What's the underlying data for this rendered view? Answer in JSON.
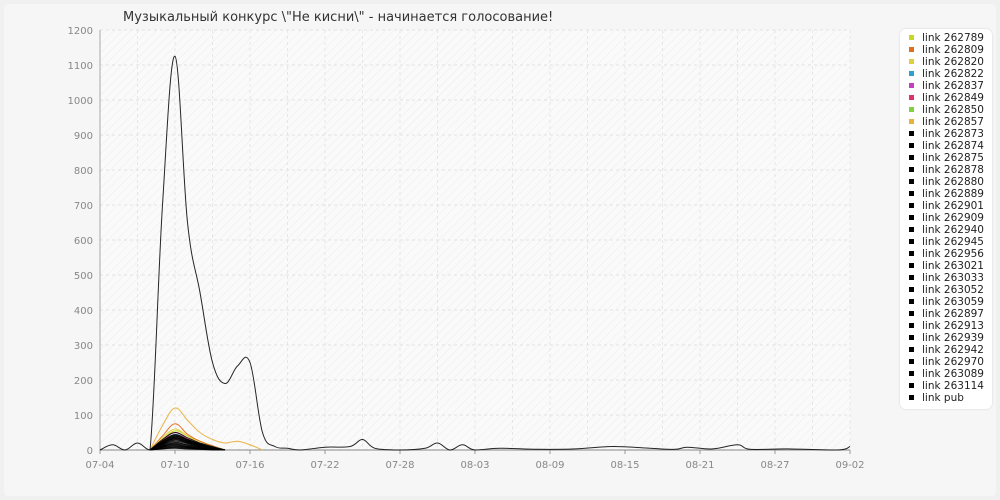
{
  "chart_data": {
    "type": "line",
    "title": "Музыкальный конкурс \\\"Не кисни\\\" - начинается голосование!",
    "xlabel": "",
    "ylabel": "",
    "ylim": [
      0,
      1200
    ],
    "y_ticks": [
      0,
      100,
      200,
      300,
      400,
      500,
      600,
      700,
      800,
      900,
      1000,
      1100,
      1200
    ],
    "x_tick_labels": [
      "07-04",
      "07-10",
      "07-16",
      "07-22",
      "07-28",
      "08-03",
      "08-09",
      "08-15",
      "08-21",
      "08-27",
      "09-02"
    ],
    "x_start": "07-04",
    "x_end": "09-02",
    "grid": true,
    "legend_position": "right",
    "series": [
      {
        "name": "link 262789",
        "color": "#c8d820",
        "x": [
          "07-08",
          "07-09",
          "07-10",
          "07-11",
          "07-12",
          "07-13",
          "07-14"
        ],
        "y": [
          0,
          30,
          55,
          40,
          25,
          10,
          0
        ]
      },
      {
        "name": "link 262809",
        "color": "#e07020",
        "x": [
          "07-08",
          "07-09",
          "07-10",
          "07-11",
          "07-12",
          "07-13",
          "07-14"
        ],
        "y": [
          0,
          40,
          75,
          45,
          25,
          12,
          0
        ]
      },
      {
        "name": "link 262820",
        "color": "#e0d040",
        "x": [
          "07-08",
          "07-09",
          "07-10",
          "07-11",
          "07-12",
          "07-13",
          "07-14"
        ],
        "y": [
          0,
          35,
          60,
          40,
          20,
          10,
          0
        ]
      },
      {
        "name": "link 262822",
        "color": "#30a0d0",
        "x": [
          "07-08",
          "07-09",
          "07-10",
          "07-11",
          "07-12",
          "07-13",
          "07-14"
        ],
        "y": [
          0,
          25,
          45,
          30,
          18,
          8,
          0
        ]
      },
      {
        "name": "link 262837",
        "color": "#c040c0",
        "x": [
          "07-08",
          "07-09",
          "07-10",
          "07-11",
          "07-12",
          "07-13",
          "07-14"
        ],
        "y": [
          0,
          20,
          40,
          30,
          15,
          5,
          0
        ]
      },
      {
        "name": "link 262849",
        "color": "#e03070",
        "x": [
          "07-08",
          "07-09",
          "07-10",
          "07-11",
          "07-12",
          "07-13",
          "07-14"
        ],
        "y": [
          0,
          28,
          50,
          32,
          16,
          6,
          0
        ]
      },
      {
        "name": "link 262850",
        "color": "#80d040",
        "x": [
          "07-08",
          "07-09",
          "07-10",
          "07-11",
          "07-12",
          "07-13",
          "07-14"
        ],
        "y": [
          0,
          22,
          42,
          28,
          14,
          5,
          0
        ]
      },
      {
        "name": "link 262857",
        "color": "#e8b040",
        "x": [
          "07-08",
          "07-09",
          "07-10",
          "07-11",
          "07-12",
          "07-13",
          "07-14",
          "07-15",
          "07-16",
          "07-17"
        ],
        "y": [
          0,
          70,
          120,
          85,
          50,
          30,
          20,
          25,
          15,
          0
        ]
      },
      {
        "name": "link 262873",
        "color": "#000000",
        "x": [
          "07-08",
          "07-09",
          "07-10",
          "07-11",
          "07-12",
          "07-13",
          "07-14"
        ],
        "y": [
          0,
          30,
          50,
          35,
          20,
          10,
          0
        ]
      },
      {
        "name": "link 262874",
        "color": "#000000",
        "x": [
          "07-08",
          "07-09",
          "07-10",
          "07-11",
          "07-12",
          "07-13",
          "07-14"
        ],
        "y": [
          0,
          25,
          42,
          30,
          18,
          8,
          0
        ]
      },
      {
        "name": "link 262875",
        "color": "#000000",
        "x": [
          "07-08",
          "07-09",
          "07-10",
          "07-11",
          "07-12",
          "07-13",
          "07-14"
        ],
        "y": [
          0,
          22,
          38,
          28,
          16,
          6,
          0
        ]
      },
      {
        "name": "link 262878",
        "color": "#000000",
        "x": [
          "07-08",
          "07-09",
          "07-10",
          "07-11",
          "07-12",
          "07-13",
          "07-14"
        ],
        "y": [
          0,
          20,
          35,
          25,
          15,
          5,
          0
        ]
      },
      {
        "name": "link 262880",
        "color": "#000000",
        "x": [
          "07-08",
          "07-09",
          "07-10",
          "07-11",
          "07-12",
          "07-13",
          "07-14"
        ],
        "y": [
          0,
          18,
          32,
          22,
          12,
          5,
          0
        ]
      },
      {
        "name": "link 262889",
        "color": "#000000",
        "x": [
          "07-08",
          "07-09",
          "07-10",
          "07-11",
          "07-12",
          "07-13",
          "07-14"
        ],
        "y": [
          0,
          15,
          30,
          20,
          10,
          4,
          0
        ]
      },
      {
        "name": "link 262901",
        "color": "#000000",
        "x": [
          "07-08",
          "07-09",
          "07-10",
          "07-11",
          "07-12",
          "07-13",
          "07-14"
        ],
        "y": [
          0,
          26,
          44,
          30,
          17,
          7,
          0
        ]
      },
      {
        "name": "link 262909",
        "color": "#000000",
        "x": [
          "07-08",
          "07-09",
          "07-10",
          "07-11",
          "07-12",
          "07-13",
          "07-14"
        ],
        "y": [
          0,
          24,
          40,
          27,
          14,
          6,
          0
        ]
      },
      {
        "name": "link 262940",
        "color": "#000000",
        "x": [
          "07-08",
          "07-09",
          "07-10",
          "07-11",
          "07-12",
          "07-13",
          "07-14"
        ],
        "y": [
          0,
          20,
          36,
          25,
          13,
          5,
          0
        ]
      },
      {
        "name": "link 262945",
        "color": "#000000",
        "x": [
          "07-08",
          "07-09",
          "07-10",
          "07-11",
          "07-12",
          "07-13",
          "07-14"
        ],
        "y": [
          0,
          18,
          33,
          23,
          12,
          4,
          0
        ]
      },
      {
        "name": "link 262956",
        "color": "#000000",
        "x": [
          "07-08",
          "07-09",
          "07-10",
          "07-11",
          "07-12",
          "07-13",
          "07-14"
        ],
        "y": [
          0,
          16,
          28,
          20,
          10,
          4,
          0
        ]
      },
      {
        "name": "link 263021",
        "color": "#000000",
        "x": [
          "07-08",
          "07-09",
          "07-10",
          "07-11",
          "07-12",
          "07-13",
          "07-14"
        ],
        "y": [
          0,
          14,
          25,
          18,
          9,
          3,
          0
        ]
      },
      {
        "name": "link 263033",
        "color": "#000000",
        "x": [
          "07-08",
          "07-09",
          "07-10",
          "07-11",
          "07-12",
          "07-13",
          "07-14"
        ],
        "y": [
          0,
          12,
          22,
          15,
          8,
          3,
          0
        ]
      },
      {
        "name": "link 263052",
        "color": "#000000",
        "x": [
          "07-08",
          "07-09",
          "07-10",
          "07-11",
          "07-12",
          "07-13",
          "07-14"
        ],
        "y": [
          0,
          10,
          20,
          14,
          7,
          2,
          0
        ]
      },
      {
        "name": "link 263059",
        "color": "#000000",
        "x": [
          "07-08",
          "07-09",
          "07-10",
          "07-11",
          "07-12",
          "07-13",
          "07-14"
        ],
        "y": [
          0,
          12,
          18,
          12,
          6,
          2,
          0
        ]
      },
      {
        "name": "link 262897",
        "color": "#000000",
        "x": [
          "07-08",
          "07-09",
          "07-10",
          "07-11",
          "07-12",
          "07-13",
          "07-14"
        ],
        "y": [
          0,
          10,
          16,
          10,
          5,
          2,
          0
        ]
      },
      {
        "name": "link 262913",
        "color": "#000000",
        "x": [
          "07-08",
          "07-09",
          "07-10",
          "07-11",
          "07-12",
          "07-13",
          "07-14"
        ],
        "y": [
          0,
          8,
          14,
          9,
          4,
          1,
          0
        ]
      },
      {
        "name": "link 262939",
        "color": "#000000",
        "x": [
          "07-08",
          "07-09",
          "07-10",
          "07-11",
          "07-12",
          "07-13",
          "07-14"
        ],
        "y": [
          0,
          8,
          12,
          8,
          4,
          1,
          0
        ]
      },
      {
        "name": "link 262942",
        "color": "#000000",
        "x": [
          "07-08",
          "07-09",
          "07-10",
          "07-11",
          "07-12",
          "07-13",
          "07-14"
        ],
        "y": [
          0,
          6,
          10,
          7,
          3,
          1,
          0
        ]
      },
      {
        "name": "link 262970",
        "color": "#000000",
        "x": [
          "07-08",
          "07-09",
          "07-10",
          "07-11",
          "07-12",
          "07-13",
          "07-14"
        ],
        "y": [
          0,
          5,
          8,
          6,
          3,
          1,
          0
        ]
      },
      {
        "name": "link 263089",
        "color": "#000000",
        "x": [
          "07-08",
          "07-09",
          "07-10",
          "07-11",
          "07-12",
          "07-13",
          "07-14"
        ],
        "y": [
          0,
          4,
          6,
          4,
          2,
          1,
          0
        ]
      },
      {
        "name": "link 263114",
        "color": "#000000",
        "x": [
          "07-08",
          "07-09",
          "07-10",
          "07-11",
          "07-12",
          "07-13",
          "07-14"
        ],
        "y": [
          0,
          3,
          5,
          3,
          2,
          0,
          0
        ]
      },
      {
        "name": "link pub",
        "color": "#000000",
        "x": [
          "07-04",
          "07-05",
          "07-06",
          "07-07",
          "07-08",
          "07-09",
          "07-10",
          "07-11",
          "07-12",
          "07-13",
          "07-14",
          "07-15",
          "07-16",
          "07-17",
          "07-18",
          "07-19",
          "07-20",
          "07-22",
          "07-24",
          "07-25",
          "07-26",
          "07-28",
          "07-30",
          "07-31",
          "08-01",
          "08-02",
          "08-03",
          "08-05",
          "08-08",
          "08-11",
          "08-14",
          "08-17",
          "08-19",
          "08-20",
          "08-22",
          "08-24",
          "08-25",
          "08-28",
          "09-01",
          "09-02"
        ],
        "y": [
          0,
          15,
          0,
          20,
          0,
          700,
          1125,
          650,
          450,
          250,
          190,
          240,
          250,
          50,
          10,
          5,
          0,
          8,
          10,
          30,
          5,
          0,
          5,
          20,
          0,
          15,
          0,
          5,
          2,
          3,
          10,
          5,
          2,
          8,
          3,
          15,
          2,
          3,
          0,
          10
        ]
      }
    ]
  }
}
